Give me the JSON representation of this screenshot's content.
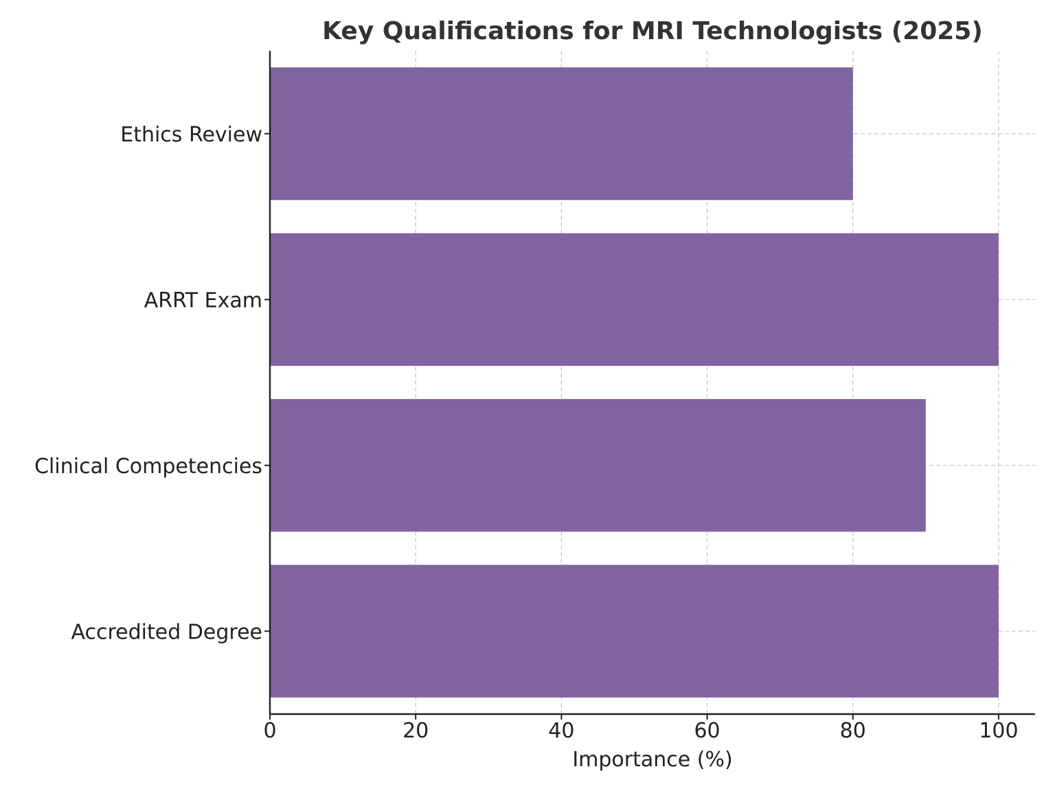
{
  "chart_data": {
    "type": "bar",
    "orientation": "horizontal",
    "title": "Key Qualifications for MRI Technologists (2025)",
    "xlabel": "Importance (%)",
    "ylabel": "",
    "categories": [
      "Accredited Degree",
      "Clinical Competencies",
      "ARRT Exam",
      "Ethics Review"
    ],
    "values": [
      100,
      90,
      100,
      80
    ],
    "xlim": [
      0,
      105
    ],
    "xticks": [
      0,
      20,
      40,
      60,
      80,
      100
    ],
    "grid": true,
    "bar_color": "#8064a2"
  }
}
